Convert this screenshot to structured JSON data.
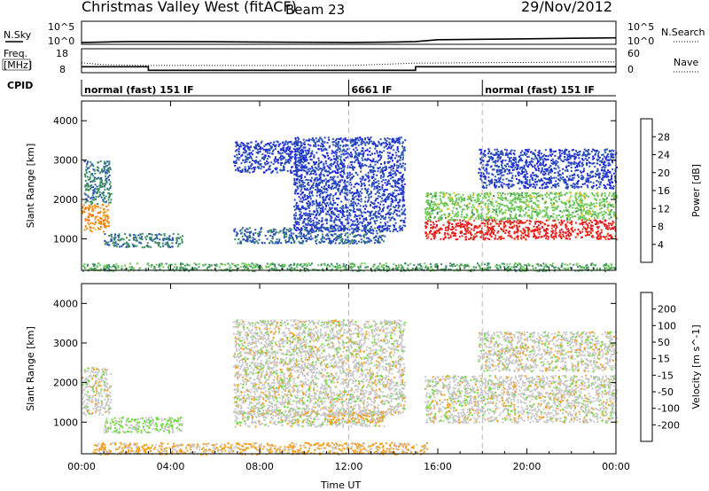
{
  "header": {
    "site": "Christmas Valley West (fitACF)",
    "beam": "Beam 23",
    "date": "29/Nov/2012"
  },
  "noise_panel": {
    "left_label": "N.Sky",
    "right_label": "N.Search",
    "left_ticks": [
      "10^5",
      "10^0"
    ],
    "right_ticks": [
      "10^5",
      "10^0"
    ]
  },
  "freq_panel": {
    "left_label_1": "Freq.",
    "left_label_2": "[MHz]",
    "right_label": "Nave",
    "left_ticks": [
      "18",
      "8"
    ],
    "right_ticks": [
      "60",
      "0"
    ]
  },
  "cpid": {
    "label": "CPID",
    "segments": [
      {
        "start_h": 0,
        "text": "normal (fast) 151 IF"
      },
      {
        "start_h": 12,
        "text": "6661 IF"
      },
      {
        "start_h": 18,
        "text": "normal (fast) 151 IF"
      }
    ]
  },
  "x_axis": {
    "ticks": [
      "00:00",
      "04:00",
      "08:00",
      "12:00",
      "16:00",
      "20:00",
      "00:00"
    ],
    "label": "Time UT"
  },
  "colors": {
    "power": [
      "#1e1ee6",
      "#2850b4",
      "#3c8c64",
      "#6ec85a",
      "#e6c31e",
      "#f08c14",
      "#f05014",
      "#e61e1e"
    ],
    "velocity": [
      "#1e28b4",
      "#2d5ab4",
      "#287846",
      "#6edc3c",
      "#c8c8c8",
      "#f5a01e",
      "#f07814",
      "#f04614",
      "#e61414"
    ]
  },
  "chart_data": [
    {
      "type": "line",
      "series": [
        {
          "name": "N.Sky",
          "hours": [
            0,
            1,
            2,
            4,
            6,
            8,
            10,
            12,
            14,
            15,
            16,
            18,
            20,
            22,
            24
          ],
          "values_log10": [
            0.4,
            0.5,
            0.6,
            0.6,
            0.55,
            0.5,
            0.45,
            0.4,
            0.5,
            0.6,
            1.0,
            1.1,
            1.2,
            1.3,
            1.4
          ]
        }
      ],
      "ylabel": "N.Sky",
      "ylim_log10": [
        0,
        5
      ],
      "xlim_hours": [
        0,
        24
      ]
    },
    {
      "type": "line",
      "series": [
        {
          "name": "Freq.",
          "hours": [
            0,
            3,
            3,
            15,
            15,
            24
          ],
          "values": [
            10.5,
            10.5,
            9,
            9,
            10.5,
            10.5
          ]
        },
        {
          "name": "Nave",
          "hours": [
            0,
            1,
            3,
            12,
            15,
            24
          ],
          "values": [
            25,
            20,
            18,
            18,
            24,
            27
          ]
        }
      ],
      "ylabel": "Freq. [MHz]",
      "ylim": [
        8,
        18
      ],
      "y2lim": [
        0,
        60
      ],
      "xlim_hours": [
        0,
        24
      ]
    },
    {
      "type": "heatmap",
      "xlabel": "Time UT",
      "ylabel": "Slant Range [km]",
      "yticks": [
        1000,
        2000,
        3000,
        4000
      ],
      "ylim": [
        200,
        4500
      ],
      "xlim_hours": [
        0,
        24
      ],
      "colorbar": {
        "label": "Power [dB]",
        "ticks": [
          "28",
          "24",
          "20",
          "16",
          "12",
          "8",
          "4"
        ],
        "range": [
          0,
          32
        ]
      },
      "regions": [
        {
          "t0": 0.0,
          "t1": 1.2,
          "r0": 1200,
          "r1": 1900,
          "value": 22
        },
        {
          "t0": 0.1,
          "t1": 1.3,
          "r0": 1900,
          "r1": 3000,
          "value": 9
        },
        {
          "t0": 1.0,
          "t1": 4.5,
          "r0": 800,
          "r1": 1150,
          "value": 9
        },
        {
          "t0": 6.8,
          "t1": 13.6,
          "r0": 900,
          "r1": 1300,
          "value": 7
        },
        {
          "t0": 6.8,
          "t1": 10.0,
          "r0": 2700,
          "r1": 3500,
          "value": 5
        },
        {
          "t0": 9.5,
          "t1": 14.5,
          "r0": 1200,
          "r1": 3600,
          "value": 5
        },
        {
          "t0": 15.4,
          "t1": 24.0,
          "r0": 1000,
          "r1": 1500,
          "value": 30
        },
        {
          "t0": 15.4,
          "t1": 24.0,
          "r0": 1500,
          "r1": 2200,
          "value": 14
        },
        {
          "t0": 17.8,
          "t1": 24.0,
          "r0": 2300,
          "r1": 3300,
          "value": 5
        },
        {
          "t0": 0.0,
          "t1": 24.0,
          "r0": 200,
          "r1": 400,
          "value": 12
        }
      ]
    },
    {
      "type": "heatmap",
      "xlabel": "Time UT",
      "ylabel": "Slant Range [km]",
      "yticks": [
        1000,
        2000,
        3000,
        4000
      ],
      "ylim": [
        200,
        4500
      ],
      "xlim_hours": [
        0,
        24
      ],
      "colorbar": {
        "label": "Velocity [m s^-1]",
        "ticks": [
          "200",
          "100",
          "50",
          "15",
          "-15",
          "-50",
          "-100",
          "-200"
        ],
        "range": [
          -250,
          250
        ]
      },
      "regions": [
        {
          "t0": 0.0,
          "t1": 1.3,
          "r0": 1200,
          "r1": 2400,
          "value": 0
        },
        {
          "t0": 1.0,
          "t1": 4.5,
          "r0": 750,
          "r1": 1150,
          "value": 35
        },
        {
          "t0": 6.8,
          "t1": 13.6,
          "r0": 900,
          "r1": 1300,
          "value": 0
        },
        {
          "t0": 11.0,
          "t1": 13.5,
          "r0": 1000,
          "r1": 1300,
          "value": -40
        },
        {
          "t0": 0.5,
          "t1": 15.5,
          "r0": 200,
          "r1": 500,
          "value": -40
        },
        {
          "t0": 15.4,
          "t1": 24.0,
          "r0": 1000,
          "r1": 2200,
          "value": 0
        },
        {
          "t0": 17.8,
          "t1": 24.0,
          "r0": 2300,
          "r1": 3300,
          "value": 0
        },
        {
          "t0": 6.8,
          "t1": 14.5,
          "r0": 1200,
          "r1": 3600,
          "value": 0
        }
      ]
    }
  ]
}
